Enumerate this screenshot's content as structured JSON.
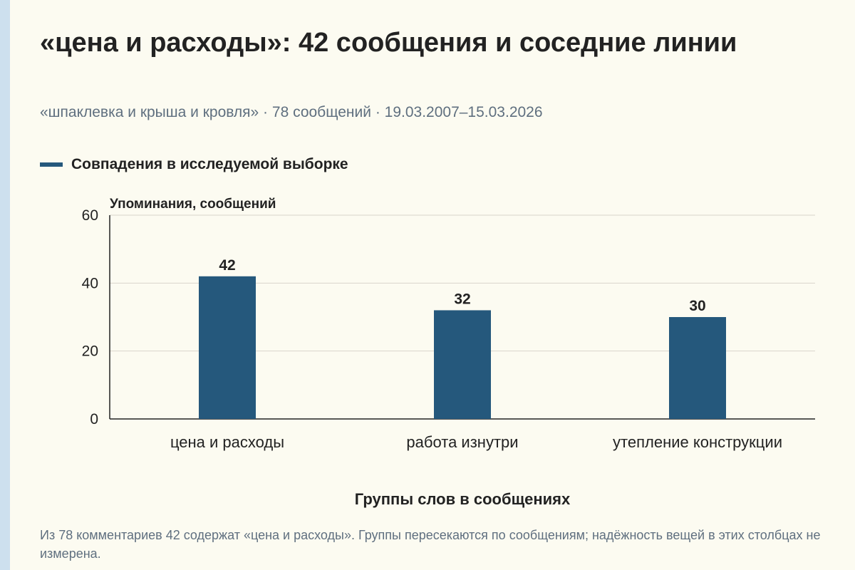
{
  "header": {
    "title": "«цена и расходы»: 42 сообщения и соседние линии",
    "subtitle": "«шпаклевка и крыша и кровля» · 78 сообщений · 19.03.2007–15.03.2026"
  },
  "colors": {
    "bar": "#25587c",
    "grid": "#d9d6cc",
    "axis": "#222222",
    "background": "#fcfbf1"
  },
  "chart_data": {
    "type": "bar",
    "legend": "Совпадения в исследуемой выборке",
    "ylabel": "Упоминания, сообщений",
    "xlabel": "Группы слов в сообщениях",
    "categories": [
      "цена и расходы",
      "работа изнутри",
      "утепление конструкции"
    ],
    "series": [
      {
        "name": "Совпадения в исследуемой выборке",
        "values": [
          42,
          32,
          30
        ]
      }
    ],
    "ylim": [
      0,
      60
    ],
    "yticks": [
      0,
      20,
      40,
      60
    ],
    "grid": true,
    "legend_position": "top-left"
  },
  "footnote": "Из 78 комментариев 42 содержат «цена и расходы». Группы пересекаются по сообщениям; надёжность вещей в этих столбцах не измерена."
}
